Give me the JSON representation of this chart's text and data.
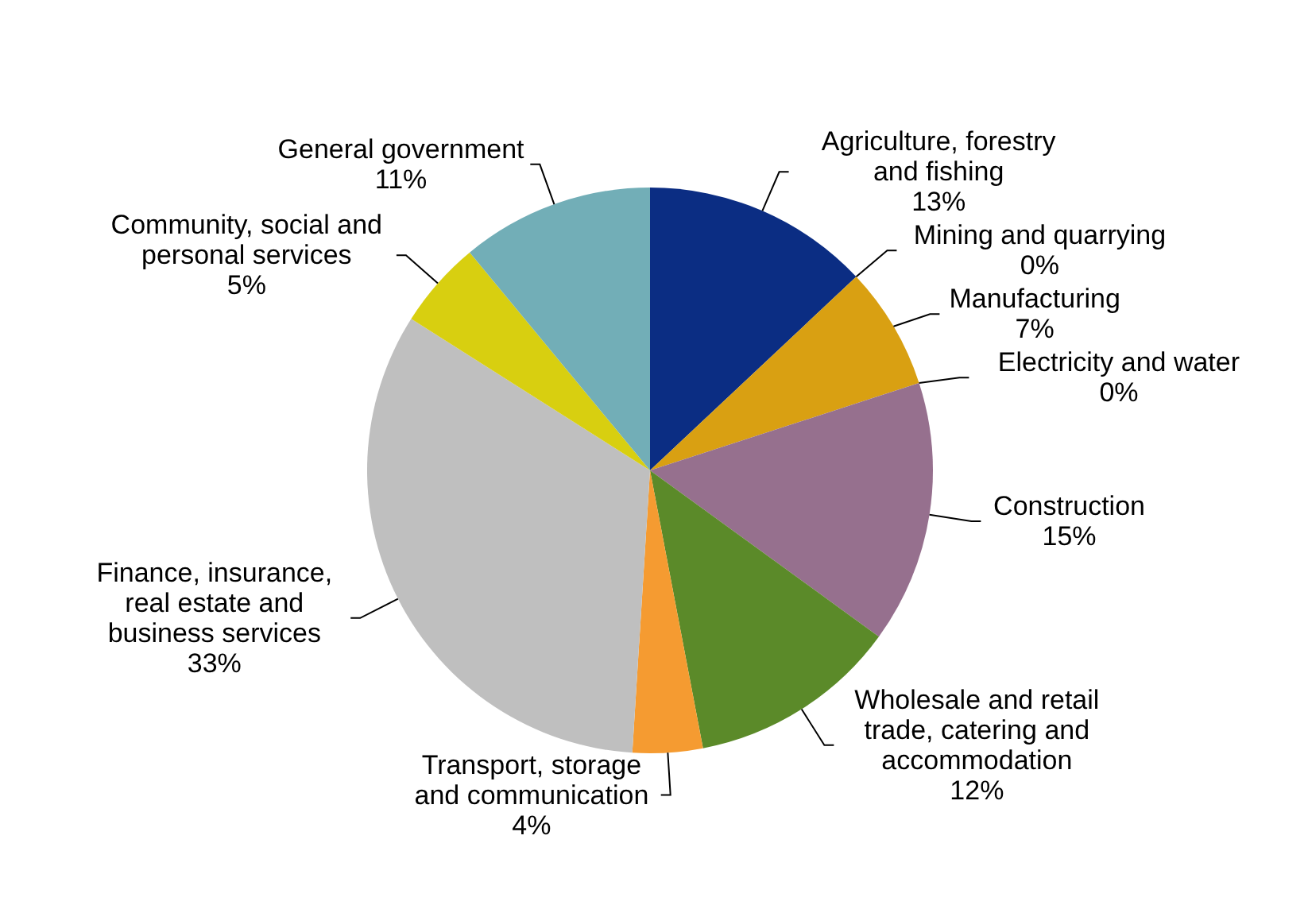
{
  "chart_data": {
    "type": "pie",
    "categories": [
      "Agriculture, forestry and fishing",
      "Mining and quarrying",
      "Manufacturing",
      "Electricity and water",
      "Construction",
      "Wholesale and retail trade, catering and accommodation",
      "Transport, storage and communication",
      "Finance, insurance, real estate and business services",
      "Community, social and personal services",
      "General government"
    ],
    "values": [
      13,
      0,
      7,
      0,
      15,
      12,
      4,
      33,
      5,
      11
    ],
    "value_labels": [
      "13%",
      "0%",
      "7%",
      "0%",
      "15%",
      "12%",
      "4%",
      "33%",
      "5%",
      "11%"
    ],
    "colors": [
      "#0b2d83",
      "#7f7f7f",
      "#d9a012",
      "#4f81bd",
      "#96708e",
      "#5b8a29",
      "#f59b31",
      "#bfbfbf",
      "#d8cf10",
      "#72aeb7"
    ]
  }
}
